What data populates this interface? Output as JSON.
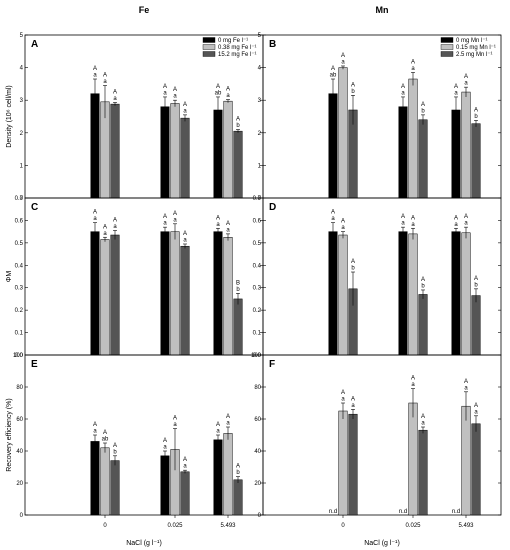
{
  "figure": {
    "col_titles": [
      "Fe",
      "Mn"
    ],
    "x_axis_label": "NaCl (g l⁻¹)",
    "x_categories": [
      "0",
      "0.025",
      "5.493"
    ]
  },
  "colors": {
    "black": "#000000",
    "light_gray": "#c0c0c0",
    "dark_gray": "#555555"
  },
  "chart_data": [
    {
      "panel": "A",
      "type": "bar",
      "ylabel": "Density (10⁶ cell/ml)",
      "ylim": [
        0,
        5
      ],
      "yticks": [
        0,
        1,
        2,
        3,
        4,
        5
      ],
      "categories": [
        "0",
        "0.025",
        "5.493"
      ],
      "legend_position": "top-right",
      "series": [
        {
          "name": "0 mg Fe l⁻¹",
          "values": [
            3.2,
            2.8,
            2.7
          ],
          "errors": [
            0.45,
            0.3,
            0.4
          ],
          "labels_upper": [
            "A",
            "A",
            "A"
          ],
          "labels_lower": [
            "a",
            "a",
            "ab"
          ]
        },
        {
          "name": "0.38 mg Fe l⁻¹",
          "values": [
            2.95,
            2.9,
            2.97
          ],
          "errors": [
            0.5,
            0.1,
            0.05
          ],
          "labels_upper": [
            "A",
            "A",
            "A"
          ],
          "labels_lower": [
            "a",
            "a",
            "a"
          ]
        },
        {
          "name": "15.2 mg Fe l⁻¹",
          "values": [
            2.88,
            2.45,
            2.05
          ],
          "errors": [
            0.05,
            0.1,
            0.05
          ],
          "labels_upper": [
            "A",
            "A",
            "A"
          ],
          "labels_lower": [
            "a",
            "a",
            "b"
          ]
        }
      ]
    },
    {
      "panel": "B",
      "type": "bar",
      "ylabel": "",
      "ylim": [
        0,
        5
      ],
      "yticks": [
        0,
        1,
        2,
        3,
        4,
        5
      ],
      "categories": [
        "0",
        "0.025",
        "5.493"
      ],
      "legend_position": "top-right",
      "series": [
        {
          "name": "0 mg Mn l⁻¹",
          "values": [
            3.2,
            2.8,
            2.7
          ],
          "errors": [
            0.45,
            0.3,
            0.4
          ],
          "labels_upper": [
            "A",
            "A",
            "A"
          ],
          "labels_lower": [
            "ab",
            "a",
            "a"
          ]
        },
        {
          "name": "0.15 mg Mn l⁻¹",
          "values": [
            4.0,
            3.65,
            3.25
          ],
          "errors": [
            0.05,
            0.2,
            0.15
          ],
          "labels_upper": [
            "A",
            "A",
            "A"
          ],
          "labels_lower": [
            "a",
            "a",
            "a"
          ]
        },
        {
          "name": "2.5 mg Mn l⁻¹",
          "values": [
            2.7,
            2.4,
            2.28
          ],
          "errors": [
            0.45,
            0.15,
            0.1
          ],
          "labels_upper": [
            "A",
            "A",
            "A"
          ],
          "labels_lower": [
            "b",
            "b",
            "b"
          ]
        }
      ]
    },
    {
      "panel": "C",
      "type": "bar",
      "ylabel": "ΦM",
      "ylim": [
        0,
        0.7
      ],
      "yticks": [
        0,
        0.1,
        0.2,
        0.3,
        0.4,
        0.5,
        0.6,
        0.7
      ],
      "categories": [
        "0",
        "0.025",
        "5.493"
      ],
      "series": [
        {
          "name": "0 mg Fe l⁻¹",
          "values": [
            0.55,
            0.55,
            0.55
          ],
          "errors": [
            0.04,
            0.02,
            0.015
          ],
          "labels_upper": [
            "A",
            "A",
            "A"
          ],
          "labels_lower": [
            "a",
            "a",
            "a"
          ]
        },
        {
          "name": "0.38 mg Fe l⁻¹",
          "values": [
            0.515,
            0.55,
            0.525
          ],
          "errors": [
            0.01,
            0.035,
            0.015
          ],
          "labels_upper": [
            "A",
            "A",
            "A"
          ],
          "labels_lower": [
            "a",
            "a",
            "a"
          ]
        },
        {
          "name": "15.2 mg Fe l⁻¹",
          "values": [
            0.535,
            0.485,
            0.25
          ],
          "errors": [
            0.02,
            0.01,
            0.025
          ],
          "labels_upper": [
            "A",
            "A",
            "B"
          ],
          "labels_lower": [
            "a",
            "a",
            "b"
          ]
        }
      ]
    },
    {
      "panel": "D",
      "type": "bar",
      "ylabel": "",
      "ylim": [
        0,
        0.7
      ],
      "yticks": [
        0,
        0.1,
        0.2,
        0.3,
        0.4,
        0.5,
        0.6,
        0.7
      ],
      "categories": [
        "0",
        "0.025",
        "5.493"
      ],
      "series": [
        {
          "name": "0 mg Mn l⁻¹",
          "values": [
            0.55,
            0.55,
            0.55
          ],
          "errors": [
            0.04,
            0.02,
            0.015
          ],
          "labels_upper": [
            "A",
            "A",
            "A"
          ],
          "labels_lower": [
            "a",
            "a",
            "a"
          ]
        },
        {
          "name": "0.15 mg Mn l⁻¹",
          "values": [
            0.535,
            0.54,
            0.545
          ],
          "errors": [
            0.015,
            0.025,
            0.025
          ],
          "labels_upper": [
            "A",
            "A",
            "A"
          ],
          "labels_lower": [
            "a",
            "a",
            "a"
          ]
        },
        {
          "name": "2.5 mg Mn l⁻¹",
          "values": [
            0.295,
            0.27,
            0.265
          ],
          "errors": [
            0.075,
            0.02,
            0.03
          ],
          "labels_upper": [
            "A",
            "A",
            "A"
          ],
          "labels_lower": [
            "b",
            "b",
            "b"
          ]
        }
      ]
    },
    {
      "panel": "E",
      "type": "bar",
      "ylabel": "Recovery efficiency (%)",
      "ylim": [
        0,
        100
      ],
      "yticks": [
        0,
        20,
        40,
        60,
        80,
        100
      ],
      "categories": [
        "0",
        "0.025",
        "5.493"
      ],
      "series": [
        {
          "name": "0 mg Fe l⁻¹",
          "values": [
            46,
            37,
            47
          ],
          "errors": [
            4,
            3,
            3
          ],
          "labels_upper": [
            "A",
            "A",
            "A"
          ],
          "labels_lower": [
            "a",
            "a",
            "a"
          ]
        },
        {
          "name": "0.38 mg Fe l⁻¹",
          "values": [
            42,
            41,
            51
          ],
          "errors": [
            3,
            13,
            4
          ],
          "labels_upper": [
            "A",
            "A",
            "A"
          ],
          "labels_lower": [
            "ab",
            "a",
            "a"
          ]
        },
        {
          "name": "15.2 mg Fe l⁻¹",
          "values": [
            34,
            27,
            22
          ],
          "errors": [
            3,
            1,
            2
          ],
          "labels_upper": [
            "A",
            "A",
            "A"
          ],
          "labels_lower": [
            "b",
            "a",
            "b"
          ]
        }
      ]
    },
    {
      "panel": "F",
      "type": "bar",
      "ylabel": "",
      "ylim": [
        0,
        100
      ],
      "yticks": [
        0,
        20,
        40,
        60,
        80,
        100
      ],
      "categories": [
        "0",
        "0.025",
        "5.493"
      ],
      "nd_label": "n.d",
      "series": [
        {
          "name": "0 mg Mn l⁻¹",
          "values": [
            0,
            0,
            0
          ],
          "errors": [
            0,
            0,
            0
          ],
          "labels_upper": [
            "",
            "",
            ""
          ],
          "labels_lower": [
            "",
            "",
            ""
          ],
          "not_detected": [
            true,
            true,
            true
          ]
        },
        {
          "name": "0.15 mg Mn l⁻¹",
          "values": [
            65,
            70,
            68
          ],
          "errors": [
            5,
            9,
            9
          ],
          "labels_upper": [
            "A",
            "A",
            "A"
          ],
          "labels_lower": [
            "a",
            "a",
            "a"
          ]
        },
        {
          "name": "2.5 mg Mn l⁻¹",
          "values": [
            63,
            53,
            57
          ],
          "errors": [
            3,
            2,
            5
          ],
          "labels_upper": [
            "A",
            "A",
            "A"
          ],
          "labels_lower": [
            "a",
            "a",
            "a"
          ]
        }
      ]
    }
  ]
}
